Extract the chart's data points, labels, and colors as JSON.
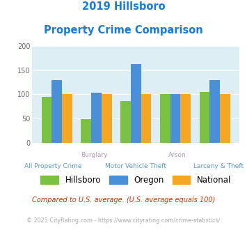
{
  "title_line1": "2019 Hillsboro",
  "title_line2": "Property Crime Comparison",
  "categories": [
    "All Property Crime",
    "Burglary",
    "Motor Vehicle Theft",
    "Arson",
    "Larceny & Theft"
  ],
  "category_labels_top": [
    "",
    "Burglary",
    "",
    "Arson",
    ""
  ],
  "category_labels_bot": [
    "All Property Crime",
    "",
    "Motor Vehicle Theft",
    "",
    "Larceny & Theft"
  ],
  "hillsboro": [
    94,
    48,
    86,
    101,
    105
  ],
  "oregon": [
    129,
    103,
    163,
    101,
    130
  ],
  "national": [
    100,
    100,
    100,
    100,
    100
  ],
  "bar_colors": {
    "hillsboro": "#7bc142",
    "oregon": "#4a90d9",
    "national": "#f5a623"
  },
  "ylim": [
    0,
    200
  ],
  "yticks": [
    0,
    50,
    100,
    150,
    200
  ],
  "bg_color": "#ddeef5",
  "title_color": "#1a7ad4",
  "xlabel_top_color": "#b09ab8",
  "xlabel_bot_color": "#5599cc",
  "legend_labels": [
    "Hillsboro",
    "Oregon",
    "National"
  ],
  "footnote1": "Compared to U.S. average. (U.S. average equals 100)",
  "footnote2": "© 2025 CityRating.com - https://www.cityrating.com/crime-statistics/",
  "footnote1_color": "#cc3300",
  "footnote2_color": "#aaaaaa",
  "footnote2_url_color": "#4488cc"
}
